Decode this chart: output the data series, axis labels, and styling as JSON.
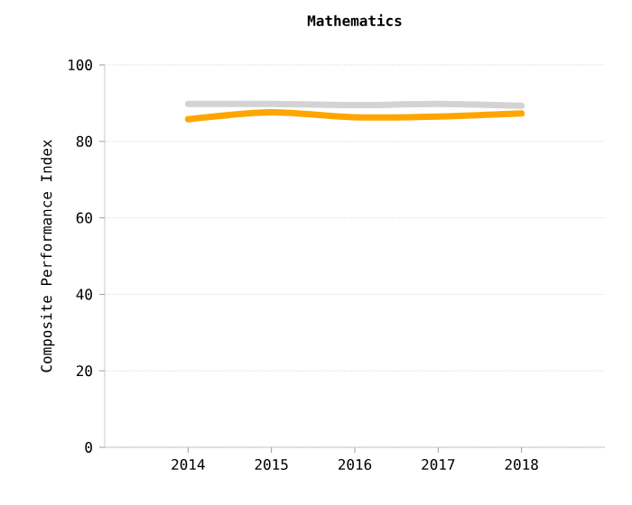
{
  "chart_data": {
    "type": "line",
    "title": "Mathematics",
    "ylabel": "Composite Performance Index",
    "categories": [
      "2014",
      "2015",
      "2016",
      "2017",
      "2018"
    ],
    "series": [
      {
        "color": "#d3d3d3",
        "values": [
          89.8,
          89.8,
          89.5,
          89.8,
          89.3
        ]
      },
      {
        "color": "#ffa500",
        "values": [
          85.8,
          87.6,
          86.3,
          86.5,
          87.3
        ]
      }
    ],
    "ylim": [
      0,
      100
    ],
    "yticks": [
      0,
      20,
      40,
      60,
      80,
      100
    ],
    "grid": "y",
    "marker": "none",
    "line_style": "solid"
  }
}
